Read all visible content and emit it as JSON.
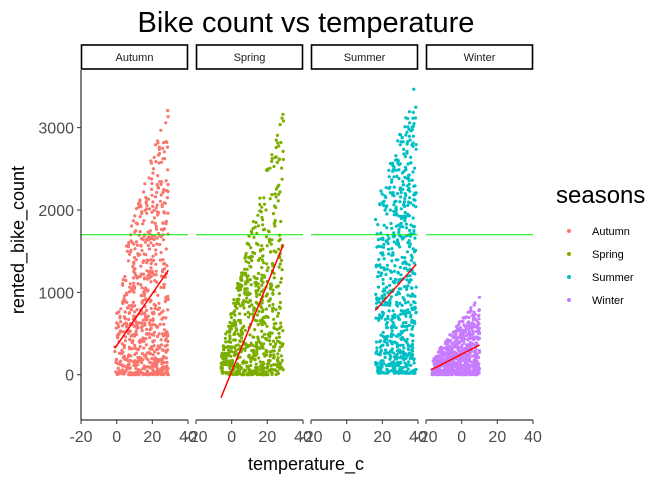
{
  "chart_data": {
    "type": "scatter",
    "title": "Bike count vs temperature",
    "xlabel": "temperature_c",
    "ylabel": "rented_bike_count",
    "xlim": [
      -20,
      40
    ],
    "ylim": [
      -550,
      3700
    ],
    "x_ticks": [
      -20,
      0,
      20,
      40
    ],
    "x_tick_labels": [
      "-20",
      "0",
      "20",
      "40"
    ],
    "y_ticks": [
      0,
      1000,
      2000,
      3000
    ],
    "y_tick_labels": [
      "0",
      "1000",
      "2000",
      "3000"
    ],
    "grid": false,
    "reference_line": {
      "y": 1700,
      "color": "#00ee00"
    },
    "trend_color": "#ff0000",
    "legend": {
      "title": "seasons",
      "position": "right"
    },
    "series": [
      {
        "name": "Autumn",
        "color": "#F8766D",
        "x_range": [
          -1,
          29
        ],
        "y_max_range": [
          1000,
          3300
        ],
        "trend": {
          "x": [
            -1,
            29
          ],
          "y": [
            320,
            1270
          ]
        }
      },
      {
        "name": "Spring",
        "color": "#7CAE00",
        "x_range": [
          -6,
          29
        ],
        "y_max_range": [
          200,
          3250
        ],
        "trend": {
          "x": [
            -6,
            29
          ],
          "y": [
            -280,
            1580
          ]
        }
      },
      {
        "name": "Summer",
        "color": "#00BFC4",
        "x_range": [
          16,
          39
        ],
        "y_max_range": [
          2000,
          3550
        ],
        "trend": {
          "x": [
            16,
            39
          ],
          "y": [
            780,
            1340
          ]
        }
      },
      {
        "name": "Winter",
        "color": "#C77CFF",
        "x_range": [
          -17,
          10
        ],
        "y_max_range": [
          150,
          950
        ],
        "trend": {
          "x": [
            -17,
            10
          ],
          "y": [
            60,
            360
          ]
        }
      }
    ]
  }
}
